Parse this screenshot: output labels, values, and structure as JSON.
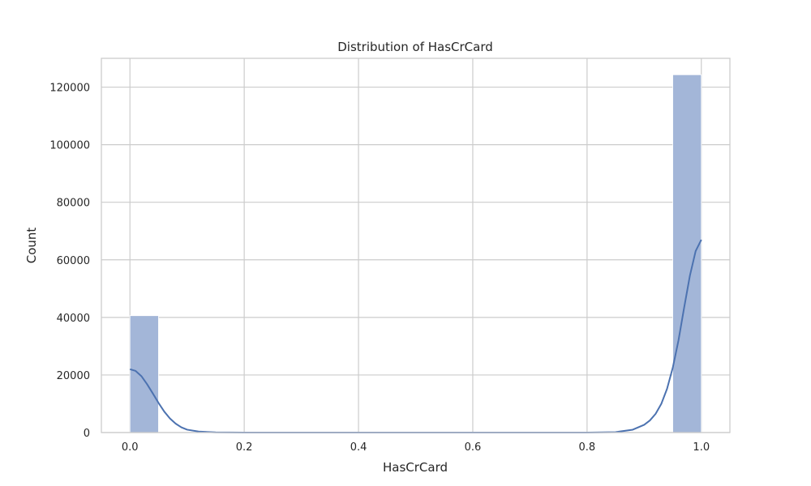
{
  "chart_data": {
    "type": "bar",
    "title": "Distribution of HasCrCard",
    "xlabel": "HasCrCard",
    "ylabel": "Count",
    "xlim": [
      -0.05,
      1.05
    ],
    "ylim": [
      0,
      130000
    ],
    "xticks": [
      0.0,
      0.2,
      0.4,
      0.6,
      0.8,
      1.0
    ],
    "xtick_labels": [
      "0.0",
      "0.2",
      "0.4",
      "0.6",
      "0.8",
      "1.0"
    ],
    "yticks": [
      0,
      20000,
      40000,
      60000,
      80000,
      100000,
      120000
    ],
    "ytick_labels": [
      "0",
      "20000",
      "40000",
      "60000",
      "80000",
      "100000",
      "120000"
    ],
    "bins": [
      {
        "x0": 0.0,
        "x1": 0.05,
        "count": 40600
      },
      {
        "x0": 0.95,
        "x1": 1.0,
        "count": 124300
      }
    ],
    "kde": [
      [
        0.0,
        22000
      ],
      [
        0.01,
        21400
      ],
      [
        0.02,
        19600
      ],
      [
        0.03,
        16800
      ],
      [
        0.04,
        13600
      ],
      [
        0.05,
        10300
      ],
      [
        0.06,
        7300
      ],
      [
        0.07,
        4900
      ],
      [
        0.08,
        3100
      ],
      [
        0.09,
        1800
      ],
      [
        0.1,
        1000
      ],
      [
        0.12,
        350
      ],
      [
        0.15,
        60
      ],
      [
        0.2,
        0
      ],
      [
        0.6,
        0
      ],
      [
        0.8,
        0
      ],
      [
        0.85,
        150
      ],
      [
        0.88,
        1000
      ],
      [
        0.9,
        2700
      ],
      [
        0.91,
        4200
      ],
      [
        0.92,
        6500
      ],
      [
        0.93,
        10000
      ],
      [
        0.94,
        15200
      ],
      [
        0.95,
        22500
      ],
      [
        0.96,
        32000
      ],
      [
        0.97,
        43500
      ],
      [
        0.98,
        54500
      ],
      [
        0.99,
        63000
      ],
      [
        1.0,
        67000
      ]
    ],
    "grid": true,
    "bar_color": "#a3b6d8",
    "line_color": "#4c72b0"
  }
}
